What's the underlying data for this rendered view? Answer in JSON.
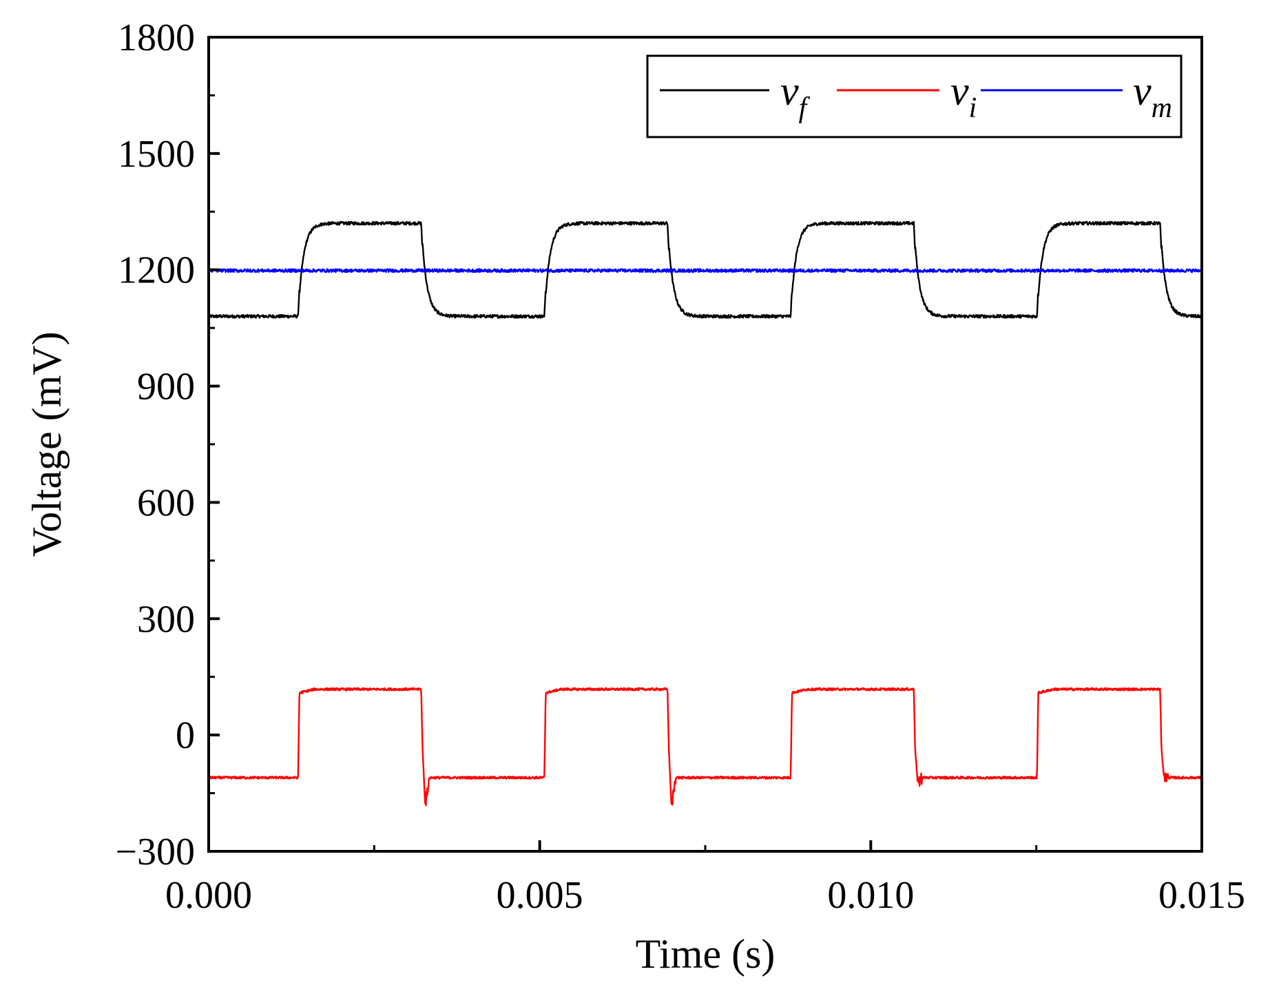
{
  "chart_data": {
    "type": "line",
    "title": "",
    "xlabel": "Time (s)",
    "ylabel": "Voltage (mV)",
    "xlim": [
      0.0,
      0.015
    ],
    "ylim": [
      -300,
      1800
    ],
    "xticks": [
      0.0,
      0.005,
      0.01,
      0.015
    ],
    "xtick_labels": [
      "0.000",
      "0.005",
      "0.010",
      "0.015"
    ],
    "yticks": [
      -300,
      0,
      300,
      600,
      900,
      1200,
      1500,
      1800
    ],
    "ytick_labels": [
      "−300",
      "0",
      "300",
      "600",
      "900",
      "1200",
      "1500",
      "1800"
    ],
    "grid": false,
    "legend_position": "top-right",
    "period_s": 0.00372,
    "high_duration_s": 0.00186,
    "series": [
      {
        "name": "v_f",
        "label_main": "v",
        "label_sub": "f",
        "color": "#000000",
        "waveform": "square",
        "low": 1080,
        "high": 1320,
        "rise_edges": [
          0.00135,
          0.00507,
          0.00879,
          0.01251
        ],
        "fall_edges": [
          0.00321,
          0.00693,
          0.01065,
          0.01437
        ],
        "rise_time_constant_s": 8e-05,
        "fall_time_constant_s": 8e-05,
        "noise_mv": 4
      },
      {
        "name": "v_i",
        "label_main": "v",
        "label_sub": "i",
        "color": "#ff0000",
        "waveform": "square",
        "low": -110,
        "high": 118,
        "rise_edges": [
          0.00135,
          0.00507,
          0.00879,
          0.01251
        ],
        "fall_edges": [
          0.00321,
          0.00693,
          0.01065,
          0.01437
        ],
        "fall_spike_min": [
          -180,
          -185,
          -125,
          -110
        ],
        "noise_mv": 3
      },
      {
        "name": "v_m",
        "label_main": "v",
        "label_sub": "m",
        "color": "#0000ff",
        "waveform": "constant",
        "value": 1198,
        "noise_mv": 4
      }
    ]
  }
}
